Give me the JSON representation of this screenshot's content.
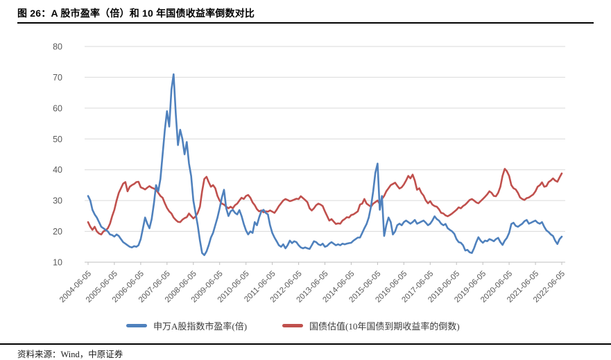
{
  "page": {
    "title": "图 26：A 股市盈率（倍）和 10 年国债收益率倒数对比",
    "source_note": "资料来源：Wind，中原证券"
  },
  "chart_data": {
    "type": "line",
    "title": "图 26：A 股市盈率（倍）和 10 年国债收益率倒数对比",
    "x_start": "2004-06",
    "x_interval": "monthly",
    "x_tick_labels": [
      "2004-06-05",
      "2005-06-05",
      "2006-06-05",
      "2007-06-05",
      "2008-06-05",
      "2009-06-05",
      "2010-06-05",
      "2011-06-05",
      "2012-06-05",
      "2013-06-05",
      "2014-06-05",
      "2015-06-05",
      "2016-06-05",
      "2017-06-05",
      "2018-06-05",
      "2019-06-05",
      "2020-06-05",
      "2021-06-05",
      "2022-06-05"
    ],
    "y_ticks": [
      10,
      20,
      30,
      40,
      50,
      60,
      70,
      80
    ],
    "ylim": [
      10,
      80
    ],
    "grid": "horizontal-only",
    "legend_position": "bottom",
    "gridline_color": "#D9D9D9",
    "axis_line_color": "#BFBFBF",
    "axis_label_color": "#595959",
    "series": [
      {
        "name": "申万A股指数市盈率(倍)",
        "color": "#4F81BD",
        "values": [
          31.5,
          30,
          27,
          25.5,
          24.5,
          23,
          21.5,
          21,
          20.5,
          20,
          19,
          18.8,
          18.3,
          19,
          18.5,
          17.5,
          16.5,
          16,
          15.5,
          15,
          14.8,
          15.2,
          15,
          15.5,
          17.5,
          21,
          24.5,
          22.5,
          21,
          24,
          29,
          35,
          33,
          37,
          45,
          53,
          59,
          54,
          66,
          71,
          58,
          48,
          53,
          50,
          45,
          49,
          42,
          38,
          30,
          26,
          22,
          17,
          13,
          12.3,
          13.5,
          15.5,
          18,
          19.5,
          22,
          24.5,
          27.5,
          31,
          33.5,
          27.5,
          25,
          26.5,
          27,
          26,
          25.5,
          26.9,
          25,
          22.4,
          20.3,
          19,
          20,
          19.5,
          23,
          22,
          24.5,
          26.5,
          27,
          26,
          25.5,
          22,
          19.5,
          18,
          16.8,
          15.5,
          15,
          15.8,
          14.5,
          15.5,
          17,
          16.2,
          16.8,
          16.5,
          15.5,
          14.8,
          14.5,
          14.8,
          14.5,
          14.3,
          15.5,
          16.8,
          16.5,
          15.8,
          15.5,
          16,
          15,
          15.3,
          16,
          16.5,
          16,
          15.5,
          15.8,
          15.5,
          16,
          15.8,
          16,
          16.2,
          16.3,
          17,
          17.5,
          18,
          18,
          19.5,
          21,
          22.4,
          24.5,
          28,
          33,
          39,
          42,
          27,
          31.5,
          18.5,
          22,
          24.5,
          23,
          19,
          20,
          22,
          22.5,
          22,
          23,
          23.5,
          23,
          22.5,
          23,
          23.7,
          22.5,
          22.8,
          23.2,
          23.5,
          22.8,
          22,
          22.5,
          23.5,
          24.9,
          24,
          23.5,
          22.5,
          22,
          22.4,
          21,
          20.5,
          20,
          19.2,
          17.5,
          16.5,
          16.3,
          15.5,
          13.8,
          14,
          13.2,
          13,
          14.5,
          16.5,
          18.1,
          17,
          16.3,
          17,
          16.8,
          17.5,
          17.2,
          16.8,
          17.5,
          17.9,
          16.5,
          15.6,
          17,
          17.9,
          19.5,
          22.4,
          22.8,
          21.8,
          21.5,
          22,
          22.5,
          23.3,
          23.7,
          22.5,
          22.8,
          23.2,
          23.5,
          22.8,
          22.5,
          23,
          21.5,
          20.3,
          19.8,
          19,
          18.5,
          17,
          15.9,
          17.5,
          18.3
        ]
      },
      {
        "name": "国债估值(10年国债到期收益率的倒数)",
        "color": "#C0504D",
        "values": [
          23,
          21.5,
          20.5,
          21.5,
          20,
          19.3,
          19,
          20,
          20.3,
          21,
          22.5,
          25,
          27,
          30,
          32.5,
          34,
          35.5,
          36,
          33,
          34.5,
          35,
          35.4,
          36,
          36.1,
          34.3,
          34,
          33.6,
          34.2,
          34.7,
          34.2,
          33.9,
          33.5,
          32.5,
          31.5,
          30.9,
          29.1,
          27.6,
          26.5,
          25.8,
          24.5,
          23.7,
          23.1,
          23,
          23.8,
          24.3,
          24.6,
          25.8,
          25,
          24.2,
          24.8,
          26,
          28,
          33,
          37,
          37.7,
          36,
          34.5,
          35,
          34,
          31.5,
          30,
          29,
          28.7,
          28,
          27.5,
          28,
          27.5,
          28.5,
          29,
          30,
          30.9,
          30.5,
          31.5,
          31.8,
          30.9,
          29.4,
          28.5,
          27.2,
          26.5,
          26.8,
          26.2,
          26.5,
          26.4,
          26.8,
          26.4,
          26,
          27,
          28.2,
          29.1,
          30,
          30.5,
          30.2,
          29.8,
          30,
          30.3,
          30.6,
          30.5,
          31.4,
          30.8,
          30.2,
          29.5,
          27.5,
          26.8,
          27.5,
          28.5,
          29,
          28.7,
          28.2,
          26.5,
          25,
          23.5,
          24,
          23.2,
          22.4,
          22.6,
          22.5,
          23.5,
          24,
          24.6,
          24.5,
          25.3,
          25.5,
          26,
          26.5,
          28.7,
          29,
          30.5,
          29,
          28.5,
          28,
          29,
          29.5,
          30,
          28.9,
          30.5,
          31.5,
          33,
          34,
          35,
          35.4,
          35.8,
          34.8,
          33.9,
          34.3,
          35.2,
          36.5,
          38,
          37.2,
          38.4,
          36.5,
          33.5,
          34,
          32.5,
          31.6,
          30,
          29.1,
          29.8,
          28.7,
          28.2,
          28,
          27.2,
          26,
          25.8,
          25.2,
          24.9,
          25.3,
          25.8,
          26.4,
          27,
          27.8,
          27.5,
          28.2,
          28.7,
          29.4,
          30.2,
          30.5,
          30,
          29.4,
          29.1,
          29.8,
          30.5,
          31.2,
          32,
          33,
          32.5,
          31.5,
          31.4,
          32.5,
          34.5,
          38,
          40.3,
          39.5,
          38,
          35,
          34,
          33.6,
          32.5,
          31,
          30.5,
          30.2,
          30.8,
          31,
          31.5,
          32,
          33,
          34.5,
          35,
          35.9,
          34.5,
          34.7,
          36,
          36.5,
          37.2,
          36.5,
          36.1,
          37.5,
          38.8
        ]
      }
    ]
  }
}
